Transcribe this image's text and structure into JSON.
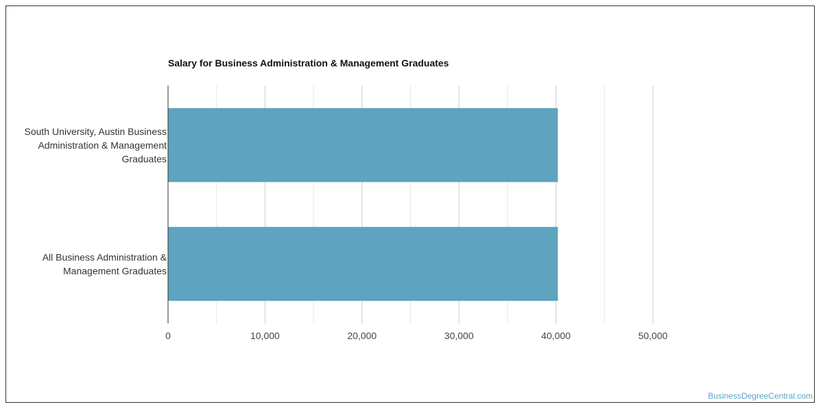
{
  "chart_data": {
    "type": "bar",
    "orientation": "horizontal",
    "title": "Salary for Business Administration & Management Graduates",
    "categories": [
      [
        "South University, Austin Business",
        "Administration & Management",
        "Graduates"
      ],
      [
        "All Business Administration &",
        "Management Graduates"
      ]
    ],
    "values": [
      40200,
      40200
    ],
    "xlim": [
      0,
      50000
    ],
    "x_ticks": [
      "0",
      "10,000",
      "20,000",
      "30,000",
      "40,000",
      "50,000"
    ],
    "grid": true,
    "bar_color": "#5ea3bf"
  },
  "watermark": "BusinessDegreeCentral.com"
}
